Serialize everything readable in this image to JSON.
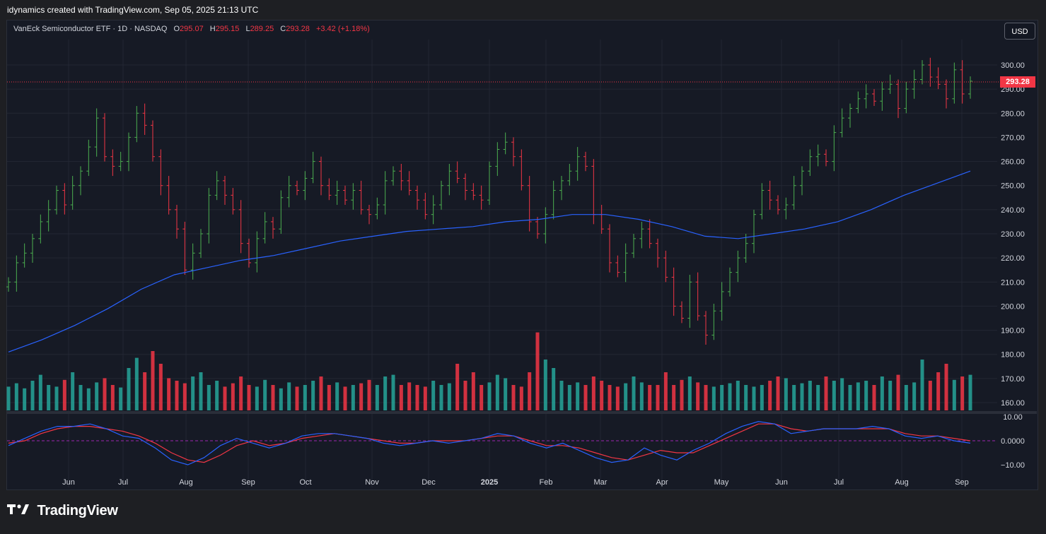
{
  "header": {
    "caption": "idynamics created with TradingView.com, Sep 05, 2025 21:13 UTC"
  },
  "legend": {
    "symbol": "VanEck Semiconductor ETF · 1D · NASDAQ",
    "o_label": "O",
    "o_value": "295.07",
    "h_label": "H",
    "h_value": "295.15",
    "l_label": "L",
    "l_value": "289.25",
    "c_label": "C",
    "c_value": "293.28",
    "change": "+3.42 (+1.18%)"
  },
  "currency_button": "USD",
  "last_price_label": "293.28",
  "footer": {
    "brand": "TradingView",
    "logo_icon": "tradingview-logo-icon"
  },
  "colors": {
    "up": "#26a69a",
    "down": "#f23645",
    "up_bar": "#4caf50",
    "ma": "#2962ff",
    "osc_fast": "#2962ff",
    "osc_slow": "#f23645",
    "background": "#161a25"
  },
  "chart_data": [
    {
      "type": "line",
      "title": "VanEck Semiconductor ETF · 1D · NASDAQ",
      "x_tick_labels": [
        "Jun",
        "Jul",
        "Aug",
        "Sep",
        "Oct",
        "Nov",
        "Dec",
        "2025",
        "Feb",
        "Mar",
        "Apr",
        "May",
        "Jun",
        "Jul",
        "Aug",
        "Sep"
      ],
      "y_tick_labels": [
        "160.00",
        "170.00",
        "180.00",
        "190.00",
        "200.00",
        "210.00",
        "220.00",
        "230.00",
        "240.00",
        "250.00",
        "260.00",
        "270.00",
        "280.00",
        "290.00",
        "300.00"
      ],
      "ylim": [
        157,
        310
      ],
      "grid": true,
      "last_price": 293.28,
      "series": [
        {
          "name": "",
          "style": "ohlc",
          "values": [
            210,
            218,
            222,
            228,
            235,
            240,
            248,
            242,
            250,
            256,
            266,
            278,
            262,
            258,
            260,
            270,
            280,
            275,
            262,
            250,
            240,
            232,
            215,
            222,
            230,
            246,
            252,
            246,
            240,
            226,
            218,
            228,
            235,
            232,
            245,
            250,
            248,
            253,
            260,
            250,
            246,
            248,
            244,
            248,
            240,
            238,
            242,
            252,
            256,
            252,
            248,
            244,
            238,
            242,
            250,
            256,
            253,
            248,
            246,
            244,
            258,
            265,
            268,
            262,
            250,
            235,
            230,
            238,
            248,
            252,
            256,
            262,
            258,
            238,
            232,
            218,
            214,
            222,
            228,
            232,
            226,
            220,
            212,
            200,
            195,
            210,
            196,
            188,
            198,
            206,
            214,
            220,
            226,
            238,
            248,
            244,
            240,
            242,
            250,
            256,
            262,
            263,
            260,
            272,
            278,
            282,
            286,
            288,
            285,
            290,
            292,
            282,
            290,
            294,
            300,
            295,
            292,
            286,
            298,
            288,
            293.28
          ]
        },
        {
          "name": "",
          "style": "moving-average",
          "values": [
            181,
            186,
            192,
            199,
            207,
            213,
            216,
            219,
            221,
            224,
            227,
            229,
            231,
            232,
            233,
            235,
            236,
            238,
            238,
            236,
            233,
            229,
            228,
            230,
            232,
            235,
            240,
            246,
            251,
            256
          ]
        }
      ]
    },
    {
      "type": "bar",
      "title": "",
      "y_tick_labels": [],
      "values_relative": [
        0.28,
        0.32,
        0.26,
        0.35,
        0.42,
        0.3,
        0.28,
        0.36,
        0.45,
        0.3,
        0.26,
        0.33,
        0.38,
        0.3,
        0.27,
        0.5,
        0.62,
        0.45,
        0.7,
        0.55,
        0.38,
        0.35,
        0.32,
        0.4,
        0.45,
        0.3,
        0.35,
        0.28,
        0.32,
        0.4,
        0.3,
        0.28,
        0.36,
        0.3,
        0.26,
        0.33,
        0.28,
        0.3,
        0.35,
        0.4,
        0.3,
        0.33,
        0.28,
        0.3,
        0.32,
        0.36,
        0.3,
        0.4,
        0.42,
        0.3,
        0.33,
        0.3,
        0.28,
        0.35,
        0.3,
        0.32,
        0.55,
        0.35,
        0.45,
        0.3,
        0.33,
        0.42,
        0.38,
        0.3,
        0.28,
        0.45,
        0.92,
        0.6,
        0.5,
        0.35,
        0.3,
        0.33,
        0.3,
        0.4,
        0.35,
        0.3,
        0.28,
        0.32,
        0.4,
        0.33,
        0.3,
        0.3,
        0.45,
        0.3,
        0.36,
        0.4,
        0.33,
        0.3,
        0.28,
        0.3,
        0.32,
        0.35,
        0.3,
        0.28,
        0.3,
        0.35,
        0.4,
        0.38,
        0.3,
        0.32,
        0.35,
        0.3,
        0.4,
        0.35,
        0.38,
        0.3,
        0.33,
        0.35,
        0.3,
        0.4,
        0.35,
        0.42,
        0.3,
        0.33,
        0.6,
        0.35,
        0.45,
        0.55,
        0.36,
        0.4,
        0.42
      ]
    },
    {
      "type": "line",
      "title": "",
      "y_tick_labels": [
        "10.00",
        "0.0000",
        "−10.00"
      ],
      "ylim": [
        -13,
        13
      ],
      "series": [
        {
          "name": "",
          "values": [
            -2,
            1,
            4,
            6,
            6,
            7,
            5,
            2,
            1,
            -3,
            -8,
            -10,
            -7,
            -2,
            1,
            -1,
            -3,
            -1,
            2,
            3,
            3,
            2,
            1,
            -1,
            -2,
            -1,
            0,
            -1,
            0,
            1,
            3,
            2,
            -1,
            -3,
            -1,
            -4,
            -7,
            -9,
            -8,
            -3,
            -6,
            -8,
            -4,
            -1,
            3,
            6,
            8,
            7,
            3,
            4,
            5,
            5,
            5,
            6,
            5,
            2,
            1,
            2,
            0,
            -1
          ]
        },
        {
          "name": "",
          "values": [
            -1,
            0,
            3,
            5,
            6,
            6,
            5,
            4,
            2,
            -1,
            -5,
            -8,
            -9,
            -6,
            -2,
            0,
            -2,
            -1,
            1,
            2,
            3,
            2,
            1,
            0,
            -1,
            -1,
            0,
            0,
            0,
            1,
            2,
            2,
            0,
            -2,
            -2,
            -3,
            -5,
            -7,
            -8,
            -6,
            -4,
            -5,
            -5,
            -2,
            1,
            4,
            7,
            7,
            5,
            4,
            5,
            5,
            5,
            5,
            5,
            3,
            2,
            2,
            1,
            0
          ]
        }
      ]
    }
  ]
}
